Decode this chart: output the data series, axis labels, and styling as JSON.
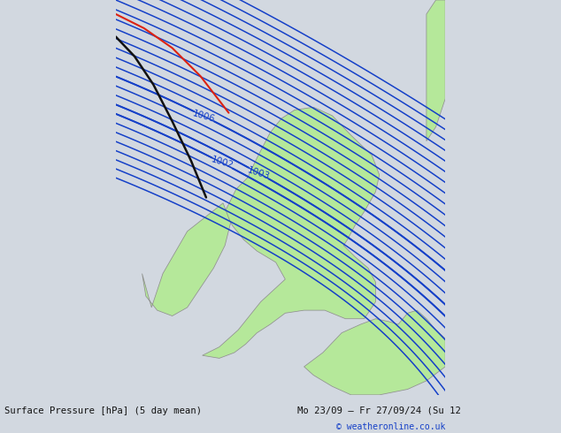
{
  "title_left": "Surface Pressure [hPa] (5 day mean)",
  "title_right": "Mo 23/09 – Fr 27/09/24 (Su 12",
  "copyright": "© weatheronline.co.uk",
  "bg_color": "#d2d8e0",
  "land_color": "#b5e89a",
  "border_color": "#909090",
  "isobar_color": "#1540c8",
  "isobar_lw": 1.1,
  "red_color": "#dd2211",
  "black_color": "#111111",
  "bottom_bg": "#ccdce8",
  "bottom_text_color": "#111111",
  "copyright_color": "#1540c8",
  "label_levels": [
    1002,
    1003,
    1006
  ],
  "isobar_levels_step": 1,
  "isobar_min": 995,
  "isobar_max": 1020,
  "xlim": [
    -12.0,
    5.5
  ],
  "ylim": [
    48.5,
    62.5
  ]
}
